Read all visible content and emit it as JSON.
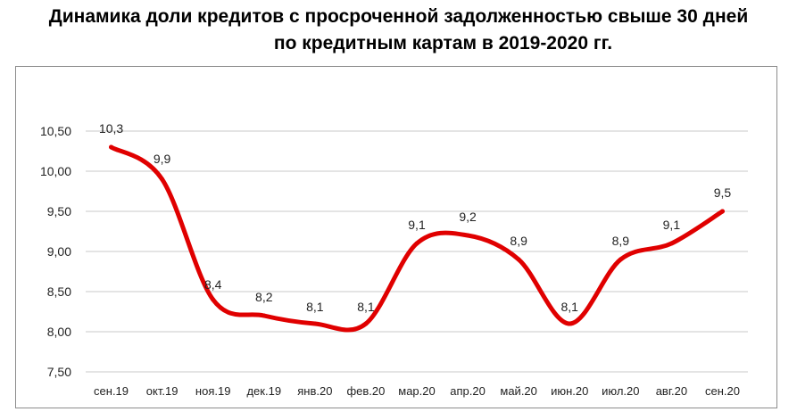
{
  "title": {
    "line1": "Динамика доли кредитов с просроченной задолженностью свыше 30 дней",
    "line2": "по кредитным картам в 2019-2020 гг."
  },
  "chart_data": {
    "type": "line",
    "title": "Динамика доли кредитов с просроченной задолженностью свыше 30 дней по кредитным картам в 2019-2020 гг.",
    "categories": [
      "сен.19",
      "окт.19",
      "ноя.19",
      "дек.19",
      "янв.20",
      "фев.20",
      "мар.20",
      "апр.20",
      "май.20",
      "июн.20",
      "июл.20",
      "авг.20",
      "сен.20"
    ],
    "series": [
      {
        "values": [
          10.3,
          9.9,
          8.4,
          8.2,
          8.1,
          8.1,
          9.1,
          9.2,
          8.9,
          8.1,
          8.9,
          9.1,
          9.5
        ],
        "data_labels": [
          "10,3",
          "9,9",
          "8,4",
          "8,2",
          "8,1",
          "8,1",
          "9,1",
          "9,2",
          "8,9",
          "8,1",
          "8,9",
          "9,1",
          "9,5"
        ],
        "color": "#e00000"
      }
    ],
    "yticks": [
      "7,50",
      "8,00",
      "8,50",
      "9,00",
      "9,50",
      "10,00",
      "10,50"
    ],
    "ylim": [
      7.5,
      10.5
    ],
    "grid": true,
    "legend": "none"
  }
}
